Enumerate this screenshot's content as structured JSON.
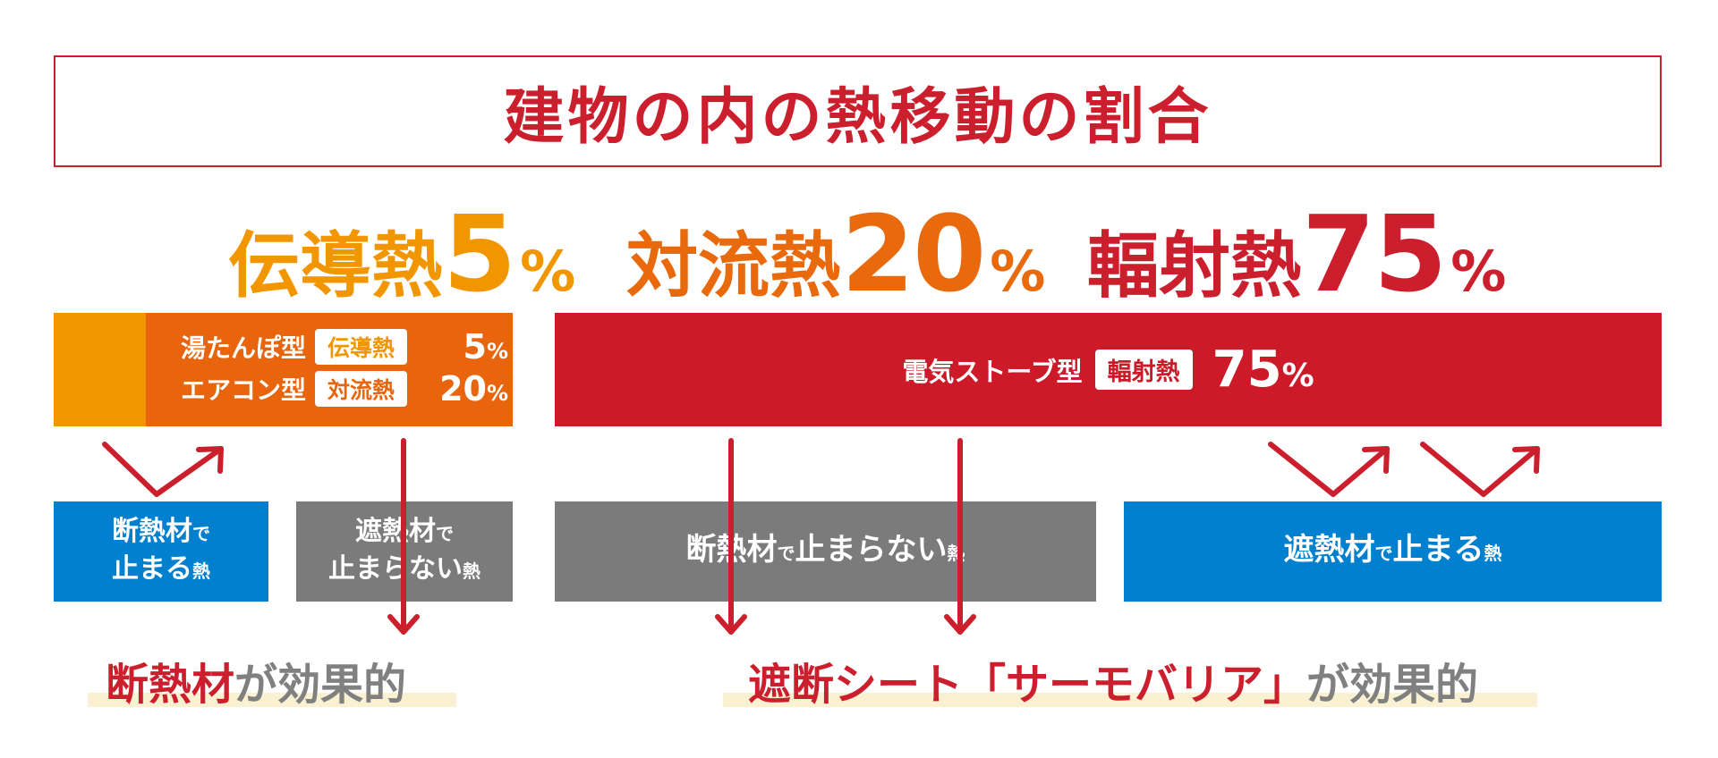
{
  "title": "建物の内の熱移動の割合",
  "headline": [
    {
      "label": "伝導熱",
      "value": "5",
      "unit": "%"
    },
    {
      "label": "対流熱",
      "value": "20",
      "unit": "%"
    },
    {
      "label": "輻射熱",
      "value": "75",
      "unit": "%"
    }
  ],
  "left_block": {
    "rows": [
      {
        "name": "湯たんぽ型",
        "badge": "伝導熱",
        "value": "5",
        "unit": "%"
      },
      {
        "name": "エアコン型",
        "badge": "対流熱",
        "value": "20",
        "unit": "%"
      }
    ]
  },
  "right_block": {
    "name": "電気ストーブ型",
    "badge": "輻射熱",
    "value": "75",
    "unit": "%"
  },
  "boxes": {
    "insulation_stops": {
      "line1": "断熱材",
      "line1_small": "で",
      "line2": "止まる",
      "line2_small": "熱"
    },
    "reflective_not_stop": {
      "line1": "遮熱材",
      "line1_small": "で",
      "line2": "止まらない",
      "line2_small": "熱"
    },
    "insulation_not_stop": {
      "a": "断熱材",
      "b": "で",
      "c": "止まらない",
      "d": "熱"
    },
    "reflective_stops": {
      "a": "遮熱材",
      "b": "で",
      "c": "止まる",
      "d": "熱"
    }
  },
  "conclusions": {
    "left": {
      "highlight": "断熱材",
      "rest": "が効果的"
    },
    "right": {
      "highlight": "遮断シート「サーモバリア」",
      "rest": "が効果的"
    }
  },
  "colors": {
    "red": "#cc1f2d",
    "orange_light": "#f29600",
    "orange_dark": "#e8650d",
    "blue": "#0080cf",
    "gray": "#7b7b7b",
    "highlight_band": "#faf0d2"
  }
}
